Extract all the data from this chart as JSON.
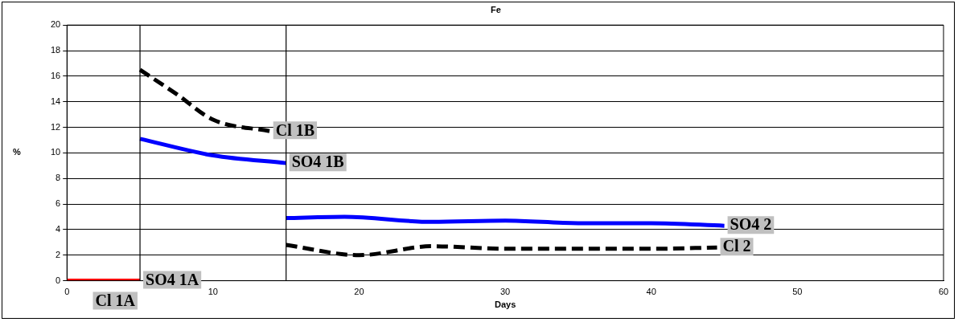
{
  "chart_data": {
    "type": "line",
    "title": "Fe",
    "xlabel": "Days",
    "ylabel": "%",
    "xlim": [
      0,
      60
    ],
    "xticks": [
      0,
      10,
      20,
      30,
      40,
      50,
      60
    ],
    "ylim": [
      0,
      20
    ],
    "yticks": [
      0,
      2,
      4,
      6,
      8,
      10,
      12,
      14,
      16,
      18,
      20
    ],
    "grid": "y",
    "legend": false,
    "marker": "none",
    "series": [
      {
        "name": "SO4 1A",
        "color": "#ff0000",
        "line_style": "solid",
        "x": [
          0,
          5
        ],
        "values": [
          0,
          0
        ]
      },
      {
        "name": "SO4 1B",
        "color": "#0000ff",
        "line_style": "solid",
        "x": [
          5,
          10,
          15
        ],
        "values": [
          11.1,
          9.8,
          9.2
        ]
      },
      {
        "name": "Cl 1B",
        "color": "#000000",
        "line_style": "dashed",
        "x": [
          5,
          7.5,
          10,
          13.9
        ],
        "values": [
          16.5,
          14.6,
          12.6,
          11.7
        ]
      },
      {
        "name": "SO4 2",
        "color": "#0000ff",
        "line_style": "solid",
        "x": [
          15,
          19,
          25,
          30,
          35,
          40,
          45
        ],
        "values": [
          4.9,
          5.0,
          4.6,
          4.7,
          4.5,
          4.5,
          4.3
        ]
      },
      {
        "name": "Cl 2",
        "color": "#000000",
        "line_style": "dashed",
        "x": [
          15,
          20,
          25,
          30,
          35,
          40,
          44.5
        ],
        "values": [
          2.8,
          2.0,
          2.7,
          2.5,
          2.5,
          2.5,
          2.6
        ]
      }
    ],
    "ref_lines": [
      {
        "axis": "x",
        "value": 5,
        "color": "#000000"
      },
      {
        "axis": "x",
        "value": 15,
        "color": "#000000"
      }
    ],
    "annotations": [
      "Cl 1A"
    ]
  }
}
